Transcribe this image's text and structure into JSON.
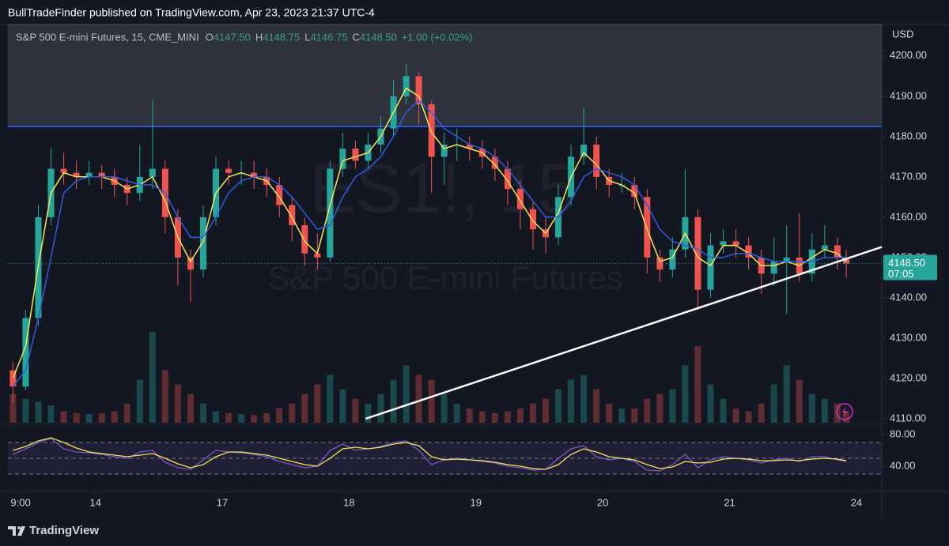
{
  "header": {
    "publisher": "BullTradeFinder published on TradingView.com, Apr 23, 2023 21:37 UTC-4"
  },
  "legend": {
    "symbol": "S&P 500 E-mini Futures, 15, CME_MINI",
    "ohlc": [
      {
        "key": "O",
        "text": "4147.50"
      },
      {
        "key": "H",
        "text": "4148.75"
      },
      {
        "key": "L",
        "text": "4146.75"
      },
      {
        "key": "C",
        "text": "4148.50"
      }
    ],
    "change": "+1.00 (+0.02%)"
  },
  "watermark": {
    "ticker": "ES1!, 15",
    "name": "S&P 500 E-mini Futures"
  },
  "currency": "USD",
  "footer": "TradingView",
  "chart_data": [
    {
      "type": "candlestick",
      "x": [
        0.35,
        0.45,
        0.55,
        0.65,
        0.75,
        0.85,
        0.95,
        1.05,
        1.15,
        1.25,
        1.35,
        1.45,
        1.55,
        1.65,
        1.75,
        1.85,
        1.95,
        2.05,
        2.15,
        2.25,
        2.35,
        2.45,
        2.55,
        2.65,
        2.75,
        2.85,
        2.95,
        3.05,
        3.15,
        3.25,
        3.35,
        3.45,
        3.55,
        3.65,
        3.75,
        3.85,
        3.95,
        4.05,
        4.15,
        4.25,
        4.35,
        4.45,
        4.55,
        4.65,
        4.75,
        4.85,
        4.95,
        5.05,
        5.15,
        5.25,
        5.35,
        5.45,
        5.55,
        5.65,
        5.75,
        5.85,
        5.95,
        6.05,
        6.15,
        6.25,
        6.35,
        6.45,
        6.55,
        6.65,
        6.75,
        6.85,
        6.92
      ],
      "open": [
        4122,
        4118,
        4135,
        4160,
        4172,
        4171,
        4170,
        4171,
        4170,
        4168,
        4166,
        4170,
        4172,
        4160,
        4150,
        4147,
        4160,
        4172,
        4171,
        4171,
        4170,
        4168,
        4163,
        4158,
        4151,
        4150,
        4172,
        4177,
        4174,
        4178,
        4182,
        4190,
        4195,
        4188,
        4175,
        4178,
        4178,
        4177,
        4175,
        4172,
        4167,
        4162,
        4157,
        4155,
        4165,
        4175,
        4178,
        4170,
        4168,
        4168,
        4165,
        4150,
        4147,
        4152,
        4160,
        4142,
        4153,
        4154,
        4153,
        4150,
        4146,
        4149,
        4150,
        4146,
        4152,
        4153,
        4150
      ],
      "high": [
        4124,
        4137,
        4163,
        4177,
        4176,
        4174,
        4174,
        4173,
        4172,
        4170,
        4178,
        4189,
        4174,
        4162,
        4152,
        4163,
        4175,
        4174,
        4174,
        4174,
        4172,
        4170,
        4165,
        4160,
        4156,
        4174,
        4181,
        4179,
        4181,
        4185,
        4194,
        4198,
        4196,
        4189,
        4181,
        4182,
        4180,
        4179,
        4177,
        4174,
        4169,
        4164,
        4160,
        4168,
        4178,
        4187,
        4180,
        4172,
        4171,
        4170,
        4167,
        4152,
        4155,
        4172,
        4162,
        4156,
        4157,
        4157,
        4155,
        4152,
        4155,
        4158,
        4161,
        4156,
        4158,
        4155,
        4152
      ],
      "low": [
        4114,
        4117,
        4133,
        4158,
        4168,
        4167,
        4168,
        4167,
        4165,
        4163,
        4164,
        4167,
        4156,
        4143,
        4139,
        4145,
        4158,
        4168,
        4168,
        4167,
        4165,
        4160,
        4154,
        4148,
        4147,
        4149,
        4170,
        4172,
        4172,
        4176,
        4180,
        4188,
        4183,
        4166,
        4168,
        4174,
        4174,
        4172,
        4169,
        4163,
        4157,
        4152,
        4151,
        4153,
        4163,
        4173,
        4167,
        4165,
        4166,
        4162,
        4146,
        4144,
        4145,
        4150,
        4137,
        4140,
        4151,
        4150,
        4147,
        4141,
        4143,
        4136,
        4144,
        4144,
        4150,
        4147,
        4145
      ],
      "close": [
        4118,
        4135,
        4160,
        4172,
        4171,
        4170,
        4171,
        4170,
        4168,
        4166,
        4170,
        4172,
        4160,
        4150,
        4147,
        4160,
        4172,
        4171,
        4171,
        4170,
        4168,
        4163,
        4158,
        4151,
        4150,
        4172,
        4177,
        4174,
        4178,
        4182,
        4190,
        4195,
        4188,
        4175,
        4178,
        4178,
        4177,
        4175,
        4172,
        4167,
        4162,
        4157,
        4155,
        4165,
        4175,
        4178,
        4170,
        4168,
        4168,
        4165,
        4150,
        4147,
        4152,
        4160,
        4142,
        4153,
        4154,
        4153,
        4150,
        4146,
        4149,
        4150,
        4146,
        4152,
        4153,
        4150,
        4148.5
      ],
      "volume": [
        30,
        25,
        22,
        18,
        12,
        10,
        9,
        10,
        12,
        20,
        45,
        95,
        55,
        40,
        30,
        20,
        12,
        10,
        9,
        8,
        10,
        15,
        20,
        30,
        40,
        50,
        35,
        25,
        20,
        30,
        45,
        60,
        50,
        45,
        30,
        20,
        15,
        12,
        10,
        12,
        15,
        20,
        25,
        35,
        45,
        50,
        35,
        20,
        15,
        15,
        25,
        30,
        35,
        60,
        80,
        40,
        25,
        15,
        12,
        20,
        40,
        60,
        45,
        30,
        25,
        20,
        12
      ],
      "up_color": "#26a69a",
      "down_color": "#ef5350",
      "series": [
        {
          "color": "#f7e35a",
          "values": [
            4120,
            4128,
            4148,
            4166,
            4171,
            4170,
            4170,
            4170,
            4169,
            4167,
            4168,
            4170,
            4164,
            4155,
            4149,
            4154,
            4166,
            4170,
            4171,
            4170,
            4169,
            4165,
            4160,
            4154,
            4151,
            4163,
            4174,
            4175,
            4176,
            4180,
            4186,
            4192,
            4190,
            4181,
            4177,
            4178,
            4177,
            4176,
            4173,
            4169,
            4164,
            4159,
            4156,
            4161,
            4170,
            4176,
            4173,
            4169,
            4168,
            4166,
            4157,
            4149,
            4150,
            4156,
            4150,
            4148,
            4153,
            4153,
            4151,
            4148,
            4148,
            4149,
            4148,
            4150,
            4152,
            4151,
            4149
          ]
        },
        {
          "color": "#2f5be0",
          "values": [
            4118,
            4122,
            4135,
            4150,
            4166,
            4169,
            4170,
            4170,
            4170,
            4169,
            4168,
            4168,
            4166,
            4160,
            4155,
            4155,
            4160,
            4166,
            4169,
            4170,
            4170,
            4168,
            4165,
            4161,
            4157,
            4158,
            4165,
            4170,
            4172,
            4175,
            4180,
            4186,
            4189,
            4186,
            4182,
            4180,
            4178,
            4177,
            4175,
            4172,
            4168,
            4164,
            4160,
            4160,
            4164,
            4170,
            4172,
            4171,
            4170,
            4168,
            4163,
            4157,
            4154,
            4153,
            4152,
            4150,
            4150,
            4151,
            4151,
            4150,
            4149,
            4149,
            4149,
            4149,
            4150,
            4150,
            4150
          ]
        }
      ],
      "xlim": [
        0.31,
        7.2
      ],
      "xticks": [
        {
          "value": 0.41,
          "label": "9:00"
        },
        {
          "value": 1,
          "label": "14"
        },
        {
          "value": 2,
          "label": "17"
        },
        {
          "value": 3,
          "label": "18"
        },
        {
          "value": 4,
          "label": "19"
        },
        {
          "value": 5,
          "label": "20"
        },
        {
          "value": 6,
          "label": "21"
        },
        {
          "value": 7,
          "label": "24"
        }
      ],
      "ylim": [
        4109,
        4208
      ],
      "yticks": [
        {
          "value": 4110,
          "label": "4110.00"
        },
        {
          "value": 4120,
          "label": "4120.00"
        },
        {
          "value": 4130,
          "label": "4130.00"
        },
        {
          "value": 4140,
          "label": "4140.00"
        },
        {
          "value": 4150,
          "label": "4150.00"
        },
        {
          "value": 4160,
          "label": "4160.00"
        },
        {
          "value": 4170,
          "label": "4170.00"
        },
        {
          "value": 4180,
          "label": "4180.00"
        },
        {
          "value": 4190,
          "label": "4190.00"
        },
        {
          "value": 4200,
          "label": "4200.00"
        }
      ],
      "resistance": {
        "value": 4182.5,
        "color": "#2962ff"
      },
      "trendline": {
        "x": [
          3.13,
          7.2
        ],
        "y": [
          4110,
          4152.6
        ],
        "color": "#ffffff"
      },
      "last_price": {
        "value": 4148.5,
        "label": "4148.50",
        "countdown": "07:05",
        "color": "#26a69a"
      }
    },
    {
      "type": "line",
      "x": [
        0.35,
        0.45,
        0.55,
        0.65,
        0.75,
        0.85,
        0.95,
        1.05,
        1.15,
        1.25,
        1.35,
        1.45,
        1.55,
        1.65,
        1.75,
        1.85,
        1.95,
        2.05,
        2.15,
        2.25,
        2.35,
        2.45,
        2.55,
        2.65,
        2.75,
        2.85,
        2.95,
        3.05,
        3.15,
        3.25,
        3.35,
        3.45,
        3.55,
        3.65,
        3.75,
        3.85,
        3.95,
        4.05,
        4.15,
        4.25,
        4.35,
        4.45,
        4.55,
        4.65,
        4.75,
        4.85,
        4.95,
        5.05,
        5.15,
        5.25,
        5.35,
        5.45,
        5.55,
        5.65,
        5.75,
        5.85,
        5.95,
        6.05,
        6.15,
        6.25,
        6.35,
        6.45,
        6.55,
        6.65,
        6.75,
        6.85,
        6.92
      ],
      "xlim": [
        0.31,
        7.2
      ],
      "ylim": [
        10,
        90
      ],
      "yticks": [
        {
          "value": 80,
          "label": "80.00"
        },
        {
          "value": 40,
          "label": "40.00"
        }
      ],
      "levels": [
        30,
        50,
        70
      ],
      "series": [
        {
          "color": "#7e57c2",
          "values": [
            55,
            62,
            70,
            75,
            62,
            58,
            57,
            55,
            52,
            50,
            58,
            60,
            45,
            38,
            36,
            48,
            60,
            58,
            57,
            55,
            52,
            46,
            42,
            38,
            40,
            60,
            68,
            60,
            62,
            65,
            70,
            72,
            60,
            42,
            48,
            50,
            48,
            46,
            44,
            40,
            38,
            35,
            36,
            50,
            62,
            66,
            52,
            48,
            50,
            46,
            35,
            34,
            42,
            55,
            38,
            48,
            52,
            50,
            48,
            44,
            48,
            50,
            46,
            52,
            52,
            48,
            46
          ]
        },
        {
          "color": "#f7e35a",
          "values": [
            60,
            65,
            72,
            76,
            70,
            63,
            58,
            56,
            54,
            52,
            54,
            56,
            50,
            43,
            38,
            42,
            52,
            58,
            58,
            56,
            54,
            50,
            46,
            42,
            40,
            50,
            62,
            64,
            62,
            64,
            68,
            70,
            66,
            52,
            48,
            49,
            48,
            47,
            45,
            42,
            40,
            37,
            36,
            42,
            55,
            62,
            58,
            52,
            50,
            48,
            42,
            37,
            39,
            46,
            44,
            45,
            49,
            50,
            49,
            47,
            47,
            48,
            47,
            49,
            50,
            49,
            47
          ]
        }
      ]
    }
  ]
}
